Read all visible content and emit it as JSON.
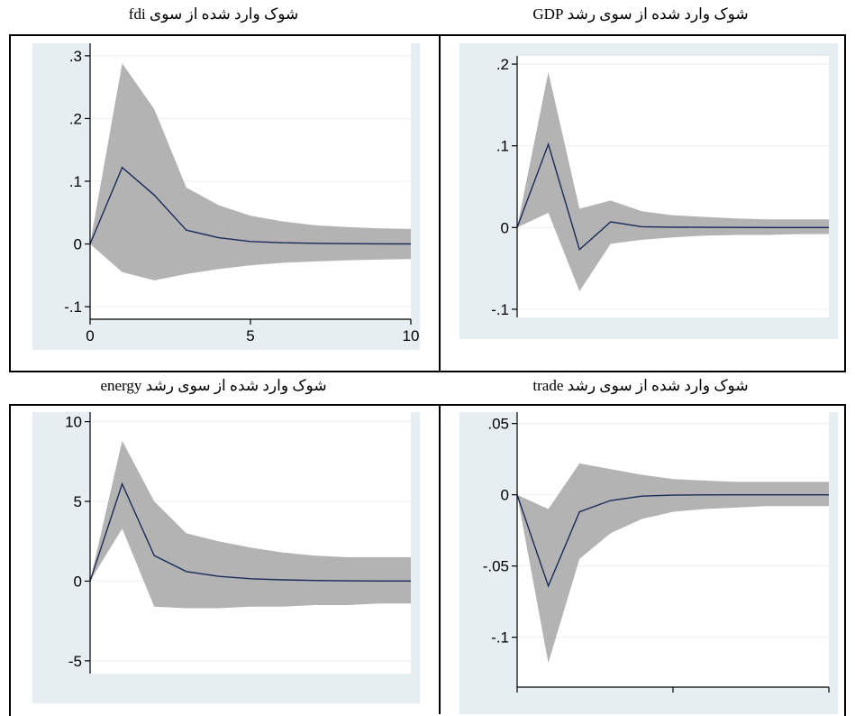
{
  "colors": {
    "plot_bg": "#ffffff",
    "outer_bg": "#e6eef2",
    "band": "#a6a6a6",
    "line": "#1a2a5a",
    "grid": "#eaf0f2"
  },
  "chart_data": [
    {
      "type": "area",
      "title": "شوک وارد شده از سوی fdi",
      "x": [
        0,
        1,
        2,
        3,
        4,
        5,
        6,
        7,
        8,
        9,
        10
      ],
      "series": [
        {
          "values": [
            0,
            0.122,
            0.078,
            0.022,
            0.01,
            0.004,
            0.002,
            0.001,
            0.0005,
            0.0002,
            0.0001
          ]
        },
        {
          "values": [
            0,
            -0.045,
            -0.058,
            -0.048,
            -0.04,
            -0.034,
            -0.03,
            -0.028,
            -0.026,
            -0.025,
            -0.024
          ]
        },
        {
          "values": [
            0,
            0.288,
            0.215,
            0.09,
            0.062,
            0.045,
            0.036,
            0.03,
            0.027,
            0.025,
            0.024
          ]
        }
      ],
      "xlim": [
        0,
        10
      ],
      "ylim": [
        -0.12,
        0.32
      ],
      "xticks": [
        0,
        5,
        10
      ],
      "xtick_labels": [
        "0",
        "5",
        "10"
      ],
      "yticks": [
        -0.1,
        0,
        0.1,
        0.2,
        0.3
      ],
      "ytick_labels": [
        "-.1",
        "0",
        ".1",
        ".2",
        ".3"
      ],
      "grid": true
    },
    {
      "type": "area",
      "title": "شوک وارد شده از سوی رشد GDP",
      "x": [
        0,
        1,
        2,
        3,
        4,
        5,
        6,
        7,
        8,
        9,
        10
      ],
      "series": [
        {
          "values": [
            0,
            0.102,
            -0.027,
            0.007,
            0.001,
            0.0005,
            0.0002,
            0.0001,
            0,
            0,
            0
          ]
        },
        {
          "values": [
            0,
            0.018,
            -0.078,
            -0.02,
            -0.015,
            -0.012,
            -0.01,
            -0.009,
            -0.009,
            -0.008,
            -0.008
          ]
        },
        {
          "values": [
            0,
            0.19,
            0.023,
            0.033,
            0.02,
            0.015,
            0.013,
            0.011,
            0.01,
            0.01,
            0.01
          ]
        }
      ],
      "xlim": [
        0,
        10
      ],
      "ylim": [
        -0.11,
        0.21
      ],
      "xticks": [],
      "xtick_labels": [],
      "yticks": [
        -0.1,
        0,
        0.1,
        0.2
      ],
      "ytick_labels": [
        "-.1",
        "0",
        ".1",
        ".2"
      ],
      "grid": true
    },
    {
      "type": "area",
      "title": "شوک وارد شده از سوی رشد energy",
      "x": [
        0,
        1,
        2,
        3,
        4,
        5,
        6,
        7,
        8,
        9,
        10
      ],
      "series": [
        {
          "values": [
            0,
            6.1,
            1.6,
            0.6,
            0.3,
            0.15,
            0.08,
            0.04,
            0.02,
            0.01,
            0.01
          ]
        },
        {
          "values": [
            0,
            3.3,
            -1.6,
            -1.7,
            -1.7,
            -1.6,
            -1.6,
            -1.5,
            -1.5,
            -1.4,
            -1.4
          ]
        },
        {
          "values": [
            0,
            8.8,
            5.0,
            3.0,
            2.5,
            2.1,
            1.8,
            1.6,
            1.5,
            1.5,
            1.5
          ]
        }
      ],
      "xlim": [
        0,
        10
      ],
      "ylim": [
        -5.8,
        10.6
      ],
      "xticks": [],
      "xtick_labels": [],
      "yticks": [
        -5,
        0,
        5,
        10
      ],
      "ytick_labels": [
        "-5",
        "0",
        "5",
        "10"
      ],
      "grid": true
    },
    {
      "type": "area",
      "title": "شوک وارد شده از سوی رشد trade",
      "x": [
        0,
        1,
        2,
        3,
        4,
        5,
        6,
        7,
        8,
        9,
        10
      ],
      "series": [
        {
          "values": [
            0,
            -0.064,
            -0.012,
            -0.004,
            -0.001,
            -0.0003,
            -0.0001,
            0,
            0,
            0,
            0
          ]
        },
        {
          "values": [
            0,
            -0.118,
            -0.045,
            -0.027,
            -0.017,
            -0.012,
            -0.01,
            -0.009,
            -0.008,
            -0.008,
            -0.008
          ]
        },
        {
          "values": [
            0,
            -0.01,
            0.022,
            0.018,
            0.014,
            0.011,
            0.01,
            0.009,
            0.009,
            0.009,
            0.009
          ]
        }
      ],
      "xlim": [
        0,
        10
      ],
      "ylim": [
        -0.135,
        0.058
      ],
      "xticks": [
        0,
        5,
        10
      ],
      "xtick_labels": [
        "",
        "",
        ""
      ],
      "yticks": [
        -0.1,
        -0.05,
        0,
        0.05
      ],
      "ytick_labels": [
        "-.1",
        "-.05",
        "0",
        ".05"
      ],
      "grid": true
    }
  ]
}
